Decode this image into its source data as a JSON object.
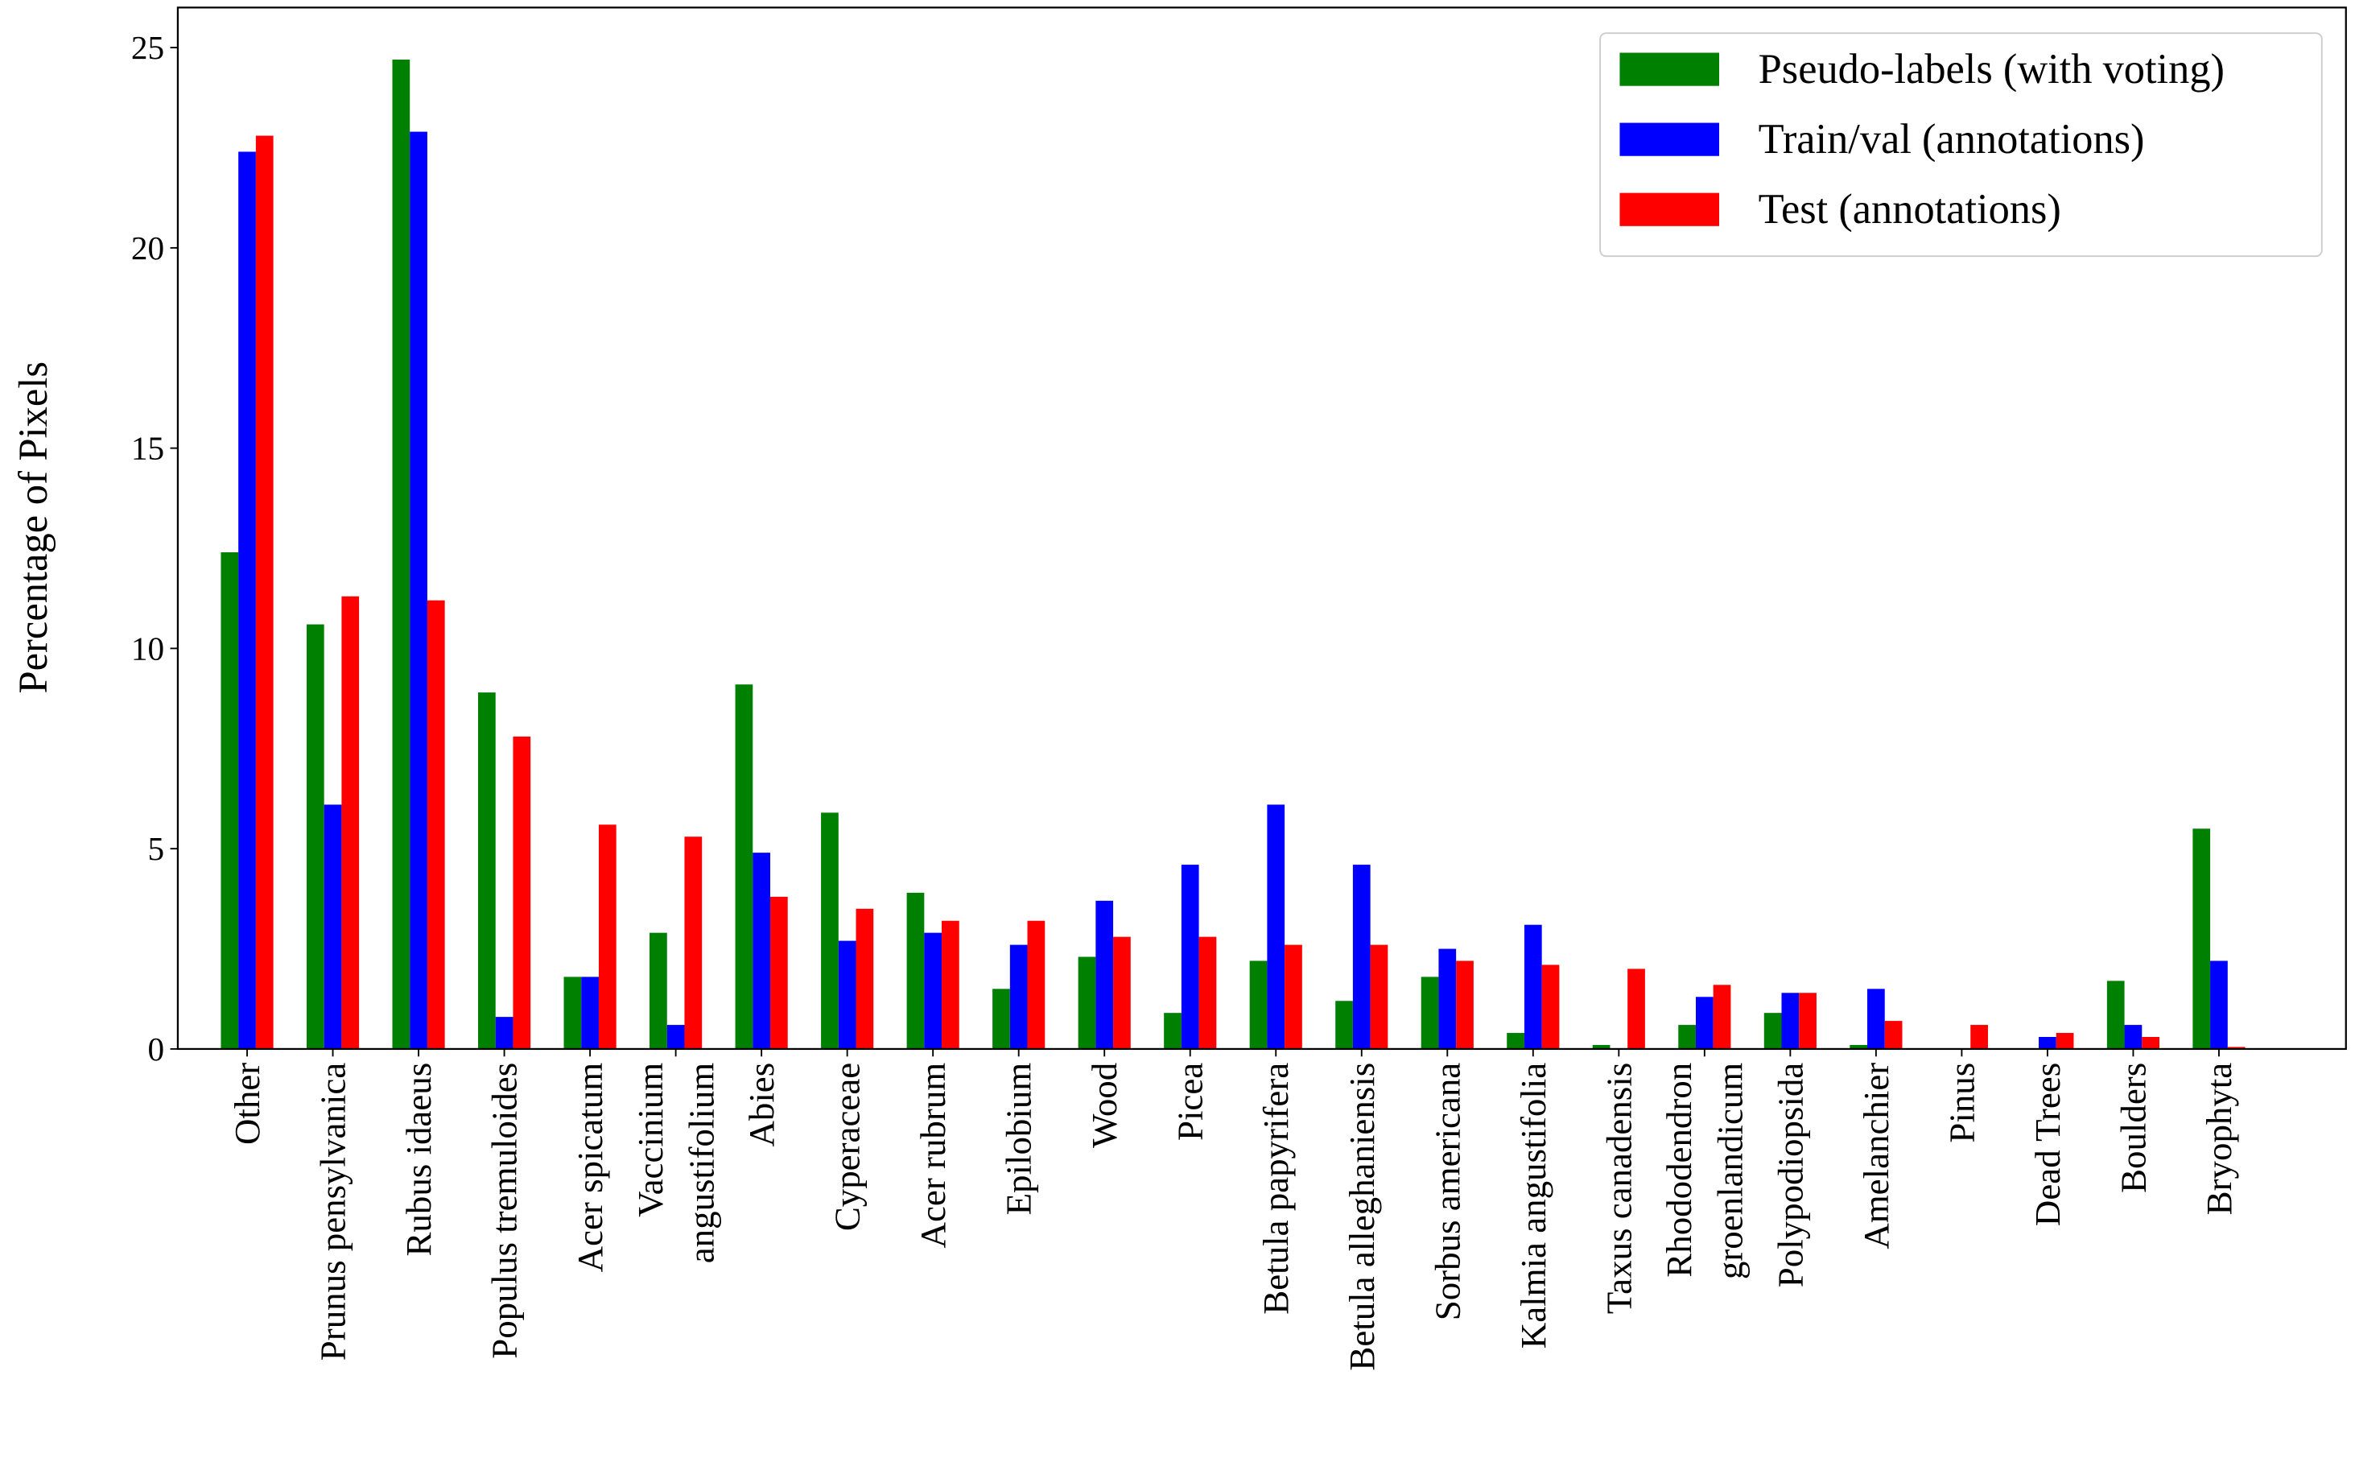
{
  "chart_data": {
    "type": "bar",
    "y_label": "Percentage of Pixels",
    "categories": [
      "Other",
      "Prunus pensylvanica",
      "Rubus idaeus",
      "Populus tremuloides",
      "Acer spicatum",
      "Vaccinium\nangustifolium",
      "Abies",
      "Cyperaceae",
      "Acer rubrum",
      "Epilobium",
      "Wood",
      "Picea",
      "Betula papyrifera",
      "Betula alleghaniensis",
      "Sorbus americana",
      "Kalmia angustifolia",
      "Taxus canadensis",
      "Rhododendron\ngroenlandicum",
      "Polypodiopsida",
      "Amelanchier",
      "Pinus",
      "Dead Trees",
      "Boulders",
      "Bryophyta"
    ],
    "series": [
      {
        "name": "Pseudo-labels (with voting)",
        "color": "#008000",
        "values": [
          12.4,
          10.6,
          24.7,
          8.9,
          1.8,
          2.9,
          9.1,
          5.9,
          3.9,
          1.5,
          2.3,
          0.9,
          2.2,
          1.2,
          1.8,
          0.4,
          0.1,
          0.6,
          0.9,
          0.1,
          0,
          0,
          1.7,
          5.5
        ]
      },
      {
        "name": "Train/val (annotations)",
        "color": "#0000ff",
        "values": [
          22.4,
          6.1,
          22.9,
          0.8,
          1.8,
          0.6,
          4.9,
          2.7,
          2.9,
          2.6,
          3.7,
          4.6,
          6.1,
          4.6,
          2.5,
          3.1,
          0,
          1.3,
          1.4,
          1.5,
          0,
          0.3,
          0.6,
          2.2
        ]
      },
      {
        "name": "Test (annotations)",
        "color": "#ff0000",
        "values": [
          22.8,
          11.3,
          11.2,
          7.8,
          5.6,
          5.3,
          3.8,
          3.5,
          3.2,
          3.2,
          2.8,
          2.8,
          2.6,
          2.6,
          2.2,
          2.1,
          2.0,
          1.6,
          1.4,
          0.7,
          0.6,
          0.4,
          0.3,
          0.05
        ]
      }
    ],
    "ylim": [
      0,
      26
    ],
    "yticks": [
      0,
      5,
      10,
      15,
      20,
      25
    ],
    "grid": false,
    "legend": "upper right"
  }
}
